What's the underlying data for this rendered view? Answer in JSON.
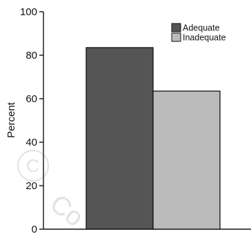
{
  "chart_data": {
    "type": "bar",
    "categories": [
      "Adequate",
      "Inadequate"
    ],
    "values": [
      83.5,
      63.5
    ],
    "colors": [
      "#555555",
      "#bbbbbb"
    ],
    "xlabel": "",
    "ylabel": "Percent",
    "ylim": [
      0,
      100
    ],
    "yticks": [
      "0",
      "20",
      "40",
      "60",
      "80",
      "100"
    ],
    "legend": [
      "Adequate",
      "Inadequate"
    ],
    "legend_position": "top-right",
    "grid": false
  },
  "watermark": {
    "text": "© Co"
  }
}
